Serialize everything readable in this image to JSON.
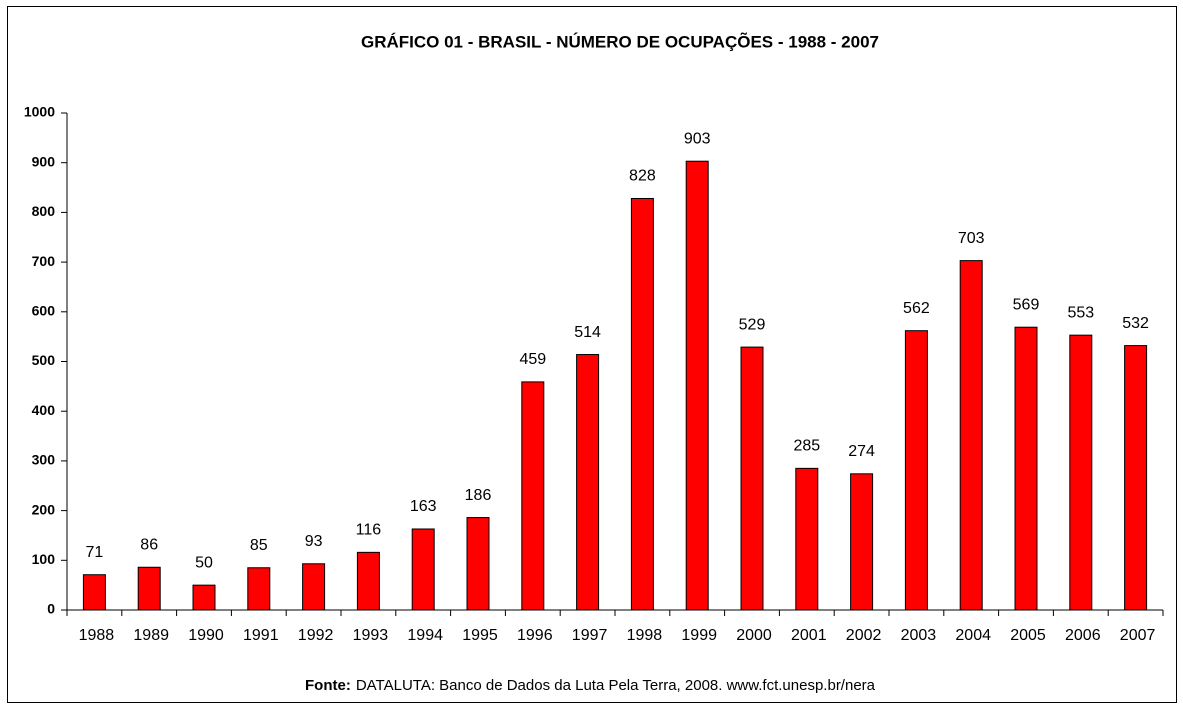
{
  "chart_data": {
    "type": "bar",
    "title": "GRÁFICO 01 - BRASIL - NÚMERO DE OCUPAÇÕES - 1988 - 2007",
    "categories": [
      "1988",
      "1989",
      "1990",
      "1991",
      "1992",
      "1993",
      "1994",
      "1995",
      "1996",
      "1997",
      "1998",
      "1999",
      "2000",
      "2001",
      "2002",
      "2003",
      "2004",
      "2005",
      "2006",
      "2007"
    ],
    "values": [
      71,
      86,
      50,
      85,
      93,
      116,
      163,
      186,
      459,
      514,
      828,
      903,
      529,
      285,
      274,
      562,
      703,
      569,
      553,
      532
    ],
    "color": "#ff0000",
    "ylim": [
      0,
      1000
    ],
    "yticks": [
      0,
      100,
      200,
      300,
      400,
      500,
      600,
      700,
      800,
      900,
      1000
    ],
    "grid": false,
    "source": {
      "label": "Fonte:",
      "text": "DATALUTA: Banco de Dados da Luta Pela Terra, 2008. www.fct.unesp.br/nera"
    }
  }
}
